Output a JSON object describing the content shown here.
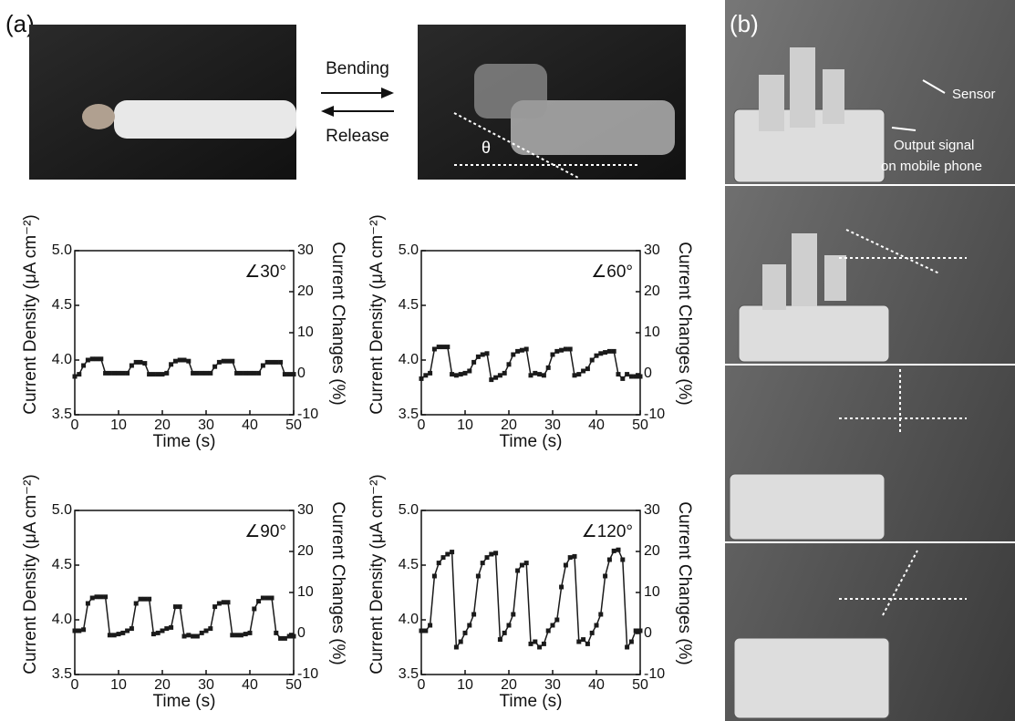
{
  "panels": {
    "a": "(a)",
    "b": "(b)"
  },
  "photo_labels": {
    "bending": "Bending",
    "release": "Release",
    "theta": "θ",
    "sensor": "Sensor",
    "output_signal": [
      "Output signal",
      "on mobile phone"
    ]
  },
  "chart_data": [
    {
      "type": "line",
      "annotation": "∠30°",
      "x_label": "Time (s)",
      "y_label": "Current Density (μA cm⁻²)",
      "y2_label": "Current Changes (%)",
      "xlim": [
        0,
        50
      ],
      "xticks": [
        0,
        10,
        20,
        30,
        40,
        50
      ],
      "ylim": [
        3.5,
        5.0
      ],
      "yticks": [
        3.5,
        {
          "value": 4,
          "label": "4.0"
        },
        4.5,
        {
          "value": 5,
          "label": "5.0"
        }
      ],
      "y2lim": [
        -10,
        30
      ],
      "y2ticks": [
        -10,
        0,
        10,
        20,
        30
      ],
      "color": "#1a1a1a",
      "marker": "square",
      "x": [
        0,
        1,
        2,
        3,
        4,
        5,
        6,
        7,
        8,
        9,
        10,
        11,
        12,
        13,
        14,
        15,
        16,
        17,
        18,
        19,
        20,
        21,
        22,
        23,
        24,
        25,
        26,
        27,
        28,
        29,
        30,
        31,
        32,
        33,
        34,
        35,
        36,
        37,
        38,
        39,
        40,
        41,
        42,
        43,
        44,
        45,
        46,
        47,
        48,
        49,
        50
      ],
      "values": [
        3.85,
        3.87,
        3.95,
        4.0,
        4.01,
        4.01,
        4.01,
        3.88,
        3.88,
        3.88,
        3.88,
        3.88,
        3.88,
        3.95,
        3.98,
        3.98,
        3.97,
        3.87,
        3.87,
        3.87,
        3.87,
        3.88,
        3.96,
        3.99,
        4.0,
        4.0,
        3.99,
        3.88,
        3.88,
        3.88,
        3.88,
        3.88,
        3.94,
        3.98,
        3.99,
        3.99,
        3.99,
        3.88,
        3.88,
        3.88,
        3.88,
        3.88,
        3.88,
        3.95,
        3.98,
        3.98,
        3.98,
        3.98,
        3.87,
        3.87,
        3.87
      ]
    },
    {
      "type": "line",
      "annotation": "∠60°",
      "x_label": "Time (s)",
      "y_label": "Current Density (μA cm⁻²)",
      "y2_label": "Current Changes (%)",
      "xlim": [
        0,
        50
      ],
      "xticks": [
        0,
        10,
        20,
        30,
        40,
        50
      ],
      "ylim": [
        3.5,
        5.0
      ],
      "yticks": [
        3.5,
        {
          "value": 4,
          "label": "4.0"
        },
        4.5,
        {
          "value": 5,
          "label": "5.0"
        }
      ],
      "y2lim": [
        -10,
        30
      ],
      "y2ticks": [
        -10,
        0,
        10,
        20,
        30
      ],
      "color": "#1a1a1a",
      "marker": "square",
      "x": [
        0,
        1,
        2,
        3,
        4,
        5,
        6,
        7,
        8,
        9,
        10,
        11,
        12,
        13,
        14,
        15,
        16,
        17,
        18,
        19,
        20,
        21,
        22,
        23,
        24,
        25,
        26,
        27,
        28,
        29,
        30,
        31,
        32,
        33,
        34,
        35,
        36,
        37,
        38,
        39,
        40,
        41,
        42,
        43,
        44,
        45,
        46,
        47,
        48,
        49,
        50
      ],
      "values": [
        3.83,
        3.86,
        3.88,
        4.1,
        4.12,
        4.12,
        4.12,
        3.87,
        3.86,
        3.87,
        3.88,
        3.9,
        3.98,
        4.03,
        4.05,
        4.06,
        3.82,
        3.84,
        3.86,
        3.88,
        3.96,
        4.05,
        4.08,
        4.09,
        4.1,
        3.86,
        3.88,
        3.87,
        3.86,
        3.93,
        4.05,
        4.08,
        4.09,
        4.1,
        4.1,
        3.86,
        3.87,
        3.9,
        3.92,
        4.0,
        4.04,
        4.06,
        4.07,
        4.08,
        4.08,
        3.87,
        3.83,
        3.87,
        3.85,
        3.85,
        3.85
      ]
    },
    {
      "type": "line",
      "annotation": "∠90°",
      "x_label": "Time (s)",
      "y_label": "Current Density (μA cm⁻²)",
      "y2_label": "Current Changes (%)",
      "xlim": [
        0,
        50
      ],
      "xticks": [
        0,
        10,
        20,
        30,
        40,
        50
      ],
      "ylim": [
        3.5,
        5.0
      ],
      "yticks": [
        3.5,
        {
          "value": 4,
          "label": "4.0"
        },
        4.5,
        {
          "value": 5,
          "label": "5.0"
        }
      ],
      "y2lim": [
        -10,
        30
      ],
      "y2ticks": [
        -10,
        0,
        10,
        20,
        30
      ],
      "color": "#1a1a1a",
      "marker": "square",
      "x": [
        0,
        1,
        2,
        3,
        4,
        5,
        6,
        7,
        8,
        9,
        10,
        11,
        12,
        13,
        14,
        15,
        16,
        17,
        18,
        19,
        20,
        21,
        22,
        23,
        24,
        25,
        26,
        27,
        28,
        29,
        30,
        31,
        32,
        33,
        34,
        35,
        36,
        37,
        38,
        39,
        40,
        41,
        42,
        43,
        44,
        45,
        46,
        47,
        48,
        49,
        50
      ],
      "values": [
        3.9,
        3.9,
        3.91,
        4.15,
        4.2,
        4.21,
        4.21,
        4.21,
        3.86,
        3.86,
        3.87,
        3.88,
        3.9,
        3.92,
        4.15,
        4.19,
        4.19,
        4.19,
        3.87,
        3.88,
        3.9,
        3.92,
        3.93,
        4.12,
        4.12,
        3.85,
        3.86,
        3.85,
        3.85,
        3.88,
        3.9,
        3.92,
        4.12,
        4.15,
        4.16,
        4.16,
        3.86,
        3.86,
        3.86,
        3.87,
        3.88,
        4.1,
        4.17,
        4.2,
        4.2,
        4.2,
        3.88,
        3.83,
        3.83,
        3.85,
        3.85
      ]
    },
    {
      "type": "line",
      "annotation": "∠120°",
      "x_label": "Time (s)",
      "y_label": "Current Density (μA cm⁻²)",
      "y2_label": "Current Changes (%)",
      "xlim": [
        0,
        50
      ],
      "xticks": [
        0,
        10,
        20,
        30,
        40,
        50
      ],
      "ylim": [
        3.5,
        5.0
      ],
      "yticks": [
        3.5,
        {
          "value": 4,
          "label": "4.0"
        },
        4.5,
        {
          "value": 5,
          "label": "5.0"
        }
      ],
      "y2lim": [
        -10,
        30
      ],
      "y2ticks": [
        -10,
        0,
        10,
        20,
        30
      ],
      "color": "#1a1a1a",
      "marker": "square",
      "x": [
        0,
        1,
        2,
        3,
        4,
        5,
        6,
        7,
        8,
        9,
        10,
        11,
        12,
        13,
        14,
        15,
        16,
        17,
        18,
        19,
        20,
        21,
        22,
        23,
        24,
        25,
        26,
        27,
        28,
        29,
        30,
        31,
        32,
        33,
        34,
        35,
        36,
        37,
        38,
        39,
        40,
        41,
        42,
        43,
        44,
        45,
        46,
        47,
        48,
        49,
        50
      ],
      "values": [
        3.9,
        3.9,
        3.95,
        4.4,
        4.52,
        4.57,
        4.6,
        4.62,
        3.75,
        3.8,
        3.88,
        3.95,
        4.05,
        4.4,
        4.52,
        4.57,
        4.6,
        4.61,
        3.82,
        3.88,
        3.95,
        4.05,
        4.45,
        4.5,
        4.52,
        3.78,
        3.8,
        3.75,
        3.78,
        3.9,
        3.95,
        4.0,
        4.3,
        4.5,
        4.57,
        4.58,
        3.8,
        3.82,
        3.78,
        3.88,
        3.95,
        4.05,
        4.4,
        4.55,
        4.63,
        4.64,
        4.55,
        3.75,
        3.8,
        3.9,
        3.9
      ]
    }
  ]
}
